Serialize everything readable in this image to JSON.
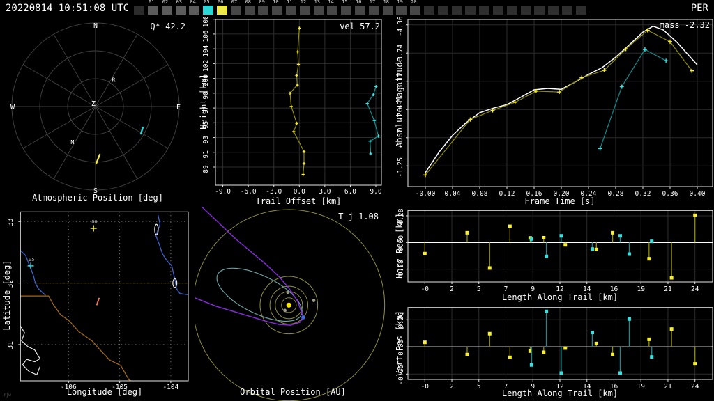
{
  "header": {
    "timestamp": "20220814 10:51:08 UTC",
    "shower_code": "PER",
    "frame_boxes": [
      {
        "label": "",
        "state": "lead"
      },
      {
        "label": "01",
        "state": "lit"
      },
      {
        "label": "02",
        "state": "lit"
      },
      {
        "label": "03",
        "state": "lit"
      },
      {
        "label": "04",
        "state": "lit"
      },
      {
        "label": "05",
        "state": "cyan"
      },
      {
        "label": "06",
        "state": "yellow"
      },
      {
        "label": "07",
        "state": "mid"
      },
      {
        "label": "08",
        "state": "mid"
      },
      {
        "label": "09",
        "state": "mid"
      },
      {
        "label": "10",
        "state": "mid"
      },
      {
        "label": "11",
        "state": "mid"
      },
      {
        "label": "12",
        "state": "mid"
      },
      {
        "label": "13",
        "state": "mid"
      },
      {
        "label": "14",
        "state": "mid"
      },
      {
        "label": "15",
        "state": "mid"
      },
      {
        "label": "16",
        "state": "mid"
      },
      {
        "label": "17",
        "state": "mid"
      },
      {
        "label": "18",
        "state": "mid"
      },
      {
        "label": "19",
        "state": "mid"
      },
      {
        "label": "20",
        "state": "mid"
      },
      {
        "label": "",
        "state": "off"
      },
      {
        "label": "",
        "state": "off"
      },
      {
        "label": "",
        "state": "off"
      },
      {
        "label": "",
        "state": "off"
      },
      {
        "label": "",
        "state": "off"
      },
      {
        "label": "",
        "state": "off"
      },
      {
        "label": "",
        "state": "off"
      },
      {
        "label": "",
        "state": "off"
      },
      {
        "label": "",
        "state": "off"
      },
      {
        "label": "",
        "state": "off"
      },
      {
        "label": "",
        "state": "off"
      },
      {
        "label": "",
        "state": "off"
      }
    ]
  },
  "colors": {
    "station_cyan": "#2ad6d6",
    "station_yellow": "#efe84a",
    "marker_yellow": "#f6ee3a",
    "stem_olive": "#8f8f00",
    "marker_cyan": "#3fdede",
    "stem_teal": "#0f8f8f",
    "white": "#ffffff",
    "grid": "#2c2c2c",
    "axis": "#e6e6e6",
    "polar_grid": "#3f3f3f",
    "purple": "#8a2be2",
    "orbit_olive": "#8f8f3f",
    "sun": "#ffe800",
    "earth": "#4169e1",
    "planet_gray": "#9a9a8a",
    "teal_orbit": "#6fa8a8",
    "river_blue": "#3c64cc",
    "border_brown": "#a06818",
    "state_olive": "#6e6428",
    "track_salmon": "#e8795a",
    "box_lit": "#5c5c5c",
    "box_mid": "#474747",
    "box_off": "#2e2e2e",
    "box_lead": "#2c2c2c",
    "map_grid": "#909090"
  },
  "chart_data": {
    "atmospheric": {
      "type": "polar",
      "overlay": "Q* 42.2",
      "title": "Atmospheric Position [deg]",
      "compass": {
        "n": "N",
        "e": "E",
        "s": "S",
        "w": "W",
        "center": "Z"
      },
      "rings_deg": [
        30,
        60,
        90
      ],
      "spoke_step_deg": 30,
      "text_markers": [
        {
          "label": "R",
          "az": 34,
          "zen": 35
        },
        {
          "label": "M",
          "az": 213,
          "zen": 45.5
        }
      ],
      "streaks": [
        {
          "color": "yellow",
          "p1": {
            "az": 179.3,
            "zen": 61.5
          },
          "p2": {
            "az": 175.0,
            "zen": 52.0
          }
        },
        {
          "color": "cyan",
          "p1": {
            "az": 121.0,
            "zen": 56.9
          },
          "p2": {
            "az": 113.8,
            "zen": 55.7
          }
        }
      ]
    },
    "trail": {
      "type": "line",
      "overlay": "vel 57.2",
      "xlabel": "Trail Offset [km]",
      "ylabel": "Height [km]",
      "xticks": [
        "-9.0",
        "-6.0",
        "-3.0",
        "0.0",
        "3.0",
        "6.0",
        "9.0"
      ],
      "xtick_vals": [
        -9,
        -6,
        -3,
        0,
        3,
        6,
        9
      ],
      "yticks": [
        "108",
        "106",
        "104",
        "102",
        "100",
        "98",
        "97",
        "95",
        "93",
        "91",
        "89"
      ],
      "ytick_vals": [
        108,
        106,
        104,
        102,
        100,
        98,
        97,
        95,
        93,
        91,
        89
      ],
      "series": {
        "yellow": [
          [
            0.0,
            106.8
          ],
          [
            -0.19,
            103.6
          ],
          [
            -0.11,
            101.9
          ],
          [
            -0.3,
            100.4
          ],
          [
            -0.25,
            99.1
          ],
          [
            -1.09,
            98.0
          ],
          [
            -0.95,
            97.1
          ],
          [
            -0.3,
            94.9
          ],
          [
            -0.66,
            93.8
          ],
          [
            0.55,
            91.1
          ],
          [
            0.55,
            89.5
          ],
          [
            0.44,
            88.0
          ]
        ],
        "cyan": [
          [
            9.02,
            98.9
          ],
          [
            8.7,
            97.9
          ],
          [
            7.99,
            97.3
          ],
          [
            8.81,
            95.3
          ],
          [
            9.3,
            93.2
          ],
          [
            8.32,
            92.5
          ],
          [
            8.4,
            90.8
          ]
        ]
      }
    },
    "magnitude": {
      "type": "line",
      "overlay": "mass -2.32",
      "xlabel": "Frame Time [s]",
      "ylabel": "Absolute Magnitude",
      "xticks": [
        "-0.00",
        "0.04",
        "0.08",
        "0.12",
        "0.16",
        "0.20",
        "0.24",
        "0.28",
        "0.32",
        "0.36",
        "0.40"
      ],
      "xtick_vals": [
        0,
        0.04,
        0.08,
        0.12,
        0.16,
        0.2,
        0.24,
        0.28,
        0.32,
        0.36,
        0.4
      ],
      "yticks": [
        "-4.36",
        "-3.74",
        "-3.12",
        "-2.49",
        "-1.87",
        "-1.25"
      ],
      "ytick_vals": [
        -4.36,
        -3.74,
        -3.12,
        -2.49,
        -1.87,
        -1.25
      ],
      "series": {
        "yellow": [
          [
            0.0,
            -1.05
          ],
          [
            0.066,
            -2.27
          ],
          [
            0.099,
            -2.47
          ],
          [
            0.132,
            -2.65
          ],
          [
            0.163,
            -2.9
          ],
          [
            0.197,
            -2.88
          ],
          [
            0.23,
            -3.2
          ],
          [
            0.263,
            -3.36
          ],
          [
            0.295,
            -3.83
          ],
          [
            0.327,
            -4.24
          ],
          [
            0.36,
            -3.99
          ],
          [
            0.392,
            -3.35
          ]
        ],
        "white": [
          [
            0.0,
            -1.1
          ],
          [
            0.02,
            -1.55
          ],
          [
            0.04,
            -1.92
          ],
          [
            0.06,
            -2.2
          ],
          [
            0.08,
            -2.42
          ],
          [
            0.1,
            -2.52
          ],
          [
            0.12,
            -2.6
          ],
          [
            0.14,
            -2.76
          ],
          [
            0.16,
            -2.93
          ],
          [
            0.18,
            -2.96
          ],
          [
            0.2,
            -2.94
          ],
          [
            0.22,
            -3.1
          ],
          [
            0.24,
            -3.27
          ],
          [
            0.26,
            -3.42
          ],
          [
            0.28,
            -3.65
          ],
          [
            0.3,
            -3.92
          ],
          [
            0.32,
            -4.2
          ],
          [
            0.335,
            -4.33
          ],
          [
            0.35,
            -4.25
          ],
          [
            0.37,
            -3.98
          ],
          [
            0.4,
            -3.48
          ]
        ],
        "cyan": [
          [
            0.257,
            -1.63
          ],
          [
            0.289,
            -3.0
          ],
          [
            0.323,
            -3.82
          ],
          [
            0.354,
            -3.57
          ]
        ]
      }
    },
    "map": {
      "type": "map",
      "xlabel": "Longitude [deg]",
      "ylabel": "Latitude [deg]",
      "xticks": [
        "-106",
        "-105",
        "-104"
      ],
      "xtick_vals": [
        -106,
        -105,
        -104
      ],
      "yticks": [
        "33",
        "32",
        "31"
      ],
      "ytick_vals": [
        33,
        32,
        31
      ],
      "watermark": "rjw",
      "stations": [
        {
          "id": "06",
          "color": "yellow",
          "lon": -105.51,
          "lat": 32.89
        },
        {
          "id": "05",
          "color": "cyan",
          "lon": -106.74,
          "lat": 32.28
        }
      ],
      "ground_track": [
        [
          -105.45,
          31.64
        ],
        [
          -105.4,
          31.76
        ]
      ],
      "features": {
        "river_west": [
          [
            -106.94,
            32.53
          ],
          [
            -106.84,
            32.45
          ],
          [
            -106.76,
            32.28
          ],
          [
            -106.69,
            32.13
          ],
          [
            -106.65,
            32.0
          ],
          [
            -106.59,
            31.91
          ],
          [
            -106.45,
            31.8
          ]
        ],
        "border": [
          [
            -106.94,
            31.79
          ],
          [
            -106.39,
            31.79
          ],
          [
            -106.29,
            31.64
          ],
          [
            -106.16,
            31.49
          ],
          [
            -105.98,
            31.38
          ],
          [
            -105.8,
            31.21
          ],
          [
            -105.54,
            31.06
          ],
          [
            -105.39,
            30.92
          ],
          [
            -105.2,
            30.75
          ],
          [
            -104.98,
            30.66
          ],
          [
            -104.82,
            30.43
          ],
          [
            -104.78,
            30.41
          ]
        ],
        "state_line": [
          [
            -106.65,
            32.0
          ],
          [
            -103.66,
            32.0
          ]
        ],
        "river_east": [
          [
            -104.25,
            33.11
          ],
          [
            -104.21,
            32.96
          ],
          [
            -104.29,
            32.77
          ],
          [
            -104.23,
            32.64
          ],
          [
            -104.16,
            32.47
          ],
          [
            -104.07,
            32.36
          ],
          [
            -103.98,
            32.28
          ],
          [
            -103.95,
            32.17
          ],
          [
            -103.91,
            32.02
          ],
          [
            -103.89,
            31.91
          ],
          [
            -103.82,
            31.83
          ],
          [
            -103.66,
            31.81
          ]
        ],
        "ranges": [
          [
            -106.94,
            31.3
          ],
          [
            -106.86,
            31.19
          ],
          [
            -106.92,
            31.06
          ],
          [
            -106.8,
            30.97
          ],
          [
            -106.66,
            30.91
          ],
          [
            -106.56,
            30.77
          ],
          [
            -106.66,
            30.72
          ],
          [
            -106.82,
            30.76
          ],
          [
            -106.9,
            30.67
          ],
          [
            -106.77,
            30.56
          ],
          [
            -106.62,
            30.51
          ],
          [
            -106.56,
            30.64
          ]
        ],
        "lakes": [
          {
            "lon": -104.28,
            "lat": 32.87,
            "rlon": 0.035,
            "rlat": 0.085
          },
          {
            "lon": -103.92,
            "lat": 32.0,
            "rlon": 0.04,
            "rlat": 0.07
          }
        ]
      }
    },
    "orbit": {
      "type": "orbit",
      "overlay": "T_j 1.08",
      "title": "Orbital Position [AU]",
      "orbit_circles_au": [
        0.39,
        0.72,
        1.0,
        1.52,
        5.05
      ],
      "planets": [
        {
          "name": "mercury",
          "x": -0.21,
          "y": -0.28
        },
        {
          "name": "venus",
          "x": -0.05,
          "y": 0.67
        },
        {
          "name": "mars",
          "x": 1.31,
          "y": 0.25
        }
      ],
      "earth": {
        "x": 0.76,
        "y": -0.65
      },
      "meteor_orbit_purple": [
        [
          -4.6,
          5.2
        ],
        [
          -2.73,
          3.43
        ],
        [
          -1.19,
          2.14
        ],
        [
          -0.53,
          1.52
        ],
        [
          0.03,
          0.86
        ],
        [
          0.47,
          0.19
        ],
        [
          0.65,
          -0.32
        ],
        [
          0.76,
          -0.65
        ],
        [
          0.58,
          -0.91
        ],
        [
          0.1,
          -1.06
        ],
        [
          -0.53,
          -1.02
        ],
        [
          -1.15,
          -0.87
        ],
        [
          -1.74,
          -0.69
        ],
        [
          -2.73,
          -0.39
        ],
        [
          -3.84,
          -0.06
        ],
        [
          -4.94,
          0.38
        ]
      ],
      "teal_ellipse": {
        "cx": -1.55,
        "cy": 0.55,
        "a": 2.45,
        "b": 1.0,
        "rot_deg": 26
      }
    },
    "horz_res": {
      "type": "stem",
      "xlabel": "Length Along Trail [km]",
      "ylabel": "Horz Res [km]",
      "xticks": [
        "-0",
        "2",
        "5",
        "7",
        "9",
        "12",
        "14",
        "16",
        "19",
        "21",
        "24"
      ],
      "xtick_vals": [
        0,
        2,
        5,
        7,
        9,
        12,
        14,
        16,
        19,
        21,
        24
      ],
      "yticks": [
        "0.28",
        "0.00",
        "-0.28"
      ],
      "ytick_vals": [
        0.28,
        0,
        -0.28
      ],
      "stems": {
        "yellow": [
          [
            0,
            -0.117
          ],
          [
            3.7,
            0.102
          ],
          [
            5.8,
            -0.268
          ],
          [
            7.3,
            0.17
          ],
          [
            8.8,
            0.048
          ],
          [
            10.2,
            0.05
          ],
          [
            12.4,
            -0.025
          ],
          [
            14.7,
            -0.073
          ],
          [
            15.9,
            0.102
          ],
          [
            19.6,
            -0.171
          ],
          [
            21.4,
            -0.371
          ],
          [
            24,
            0.285
          ]
        ],
        "cyan": [
          [
            8.9,
            0.037
          ],
          [
            10.5,
            -0.146
          ],
          [
            12.1,
            0.07
          ],
          [
            14.4,
            -0.069
          ],
          [
            16.7,
            0.07
          ],
          [
            17.7,
            -0.122
          ],
          [
            19.8,
            0.012
          ]
        ]
      }
    },
    "vert_res": {
      "type": "stem",
      "xlabel": "Length Along Trail [km]",
      "ylabel": "Vert Res [km]",
      "xticks": [
        "-0",
        "2",
        "5",
        "7",
        "9",
        "12",
        "14",
        "16",
        "19",
        "21",
        "24"
      ],
      "xtick_vals": [
        0,
        2,
        5,
        7,
        9,
        12,
        14,
        16,
        19,
        21,
        24
      ],
      "yticks": [
        "0.26",
        "0.00",
        "-0.26"
      ],
      "ytick_vals": [
        0.26,
        0,
        -0.26
      ],
      "stems": {
        "yellow": [
          [
            0,
            0.044
          ],
          [
            3.7,
            -0.073
          ],
          [
            5.8,
            0.127
          ],
          [
            7.3,
            -0.1
          ],
          [
            8.8,
            -0.04
          ],
          [
            10.2,
            -0.051
          ],
          [
            12.4,
            -0.011
          ],
          [
            14.7,
            0.033
          ],
          [
            15.9,
            -0.073
          ],
          [
            19.6,
            0.073
          ],
          [
            21.4,
            0.171
          ],
          [
            24,
            -0.162
          ]
        ],
        "cyan": [
          [
            8.9,
            -0.173
          ],
          [
            10.5,
            0.34
          ],
          [
            12.1,
            -0.251
          ],
          [
            14.4,
            0.138
          ],
          [
            16.7,
            -0.251
          ],
          [
            17.7,
            0.267
          ],
          [
            19.8,
            -0.096
          ]
        ]
      }
    }
  }
}
